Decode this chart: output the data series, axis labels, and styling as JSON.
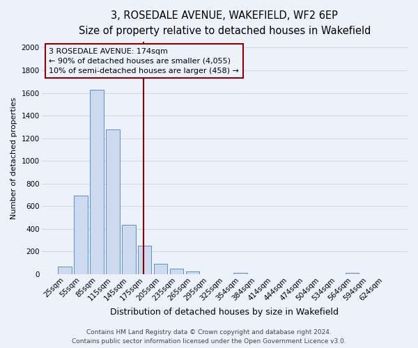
{
  "title": "3, ROSEDALE AVENUE, WAKEFIELD, WF2 6EP",
  "subtitle": "Size of property relative to detached houses in Wakefield",
  "xlabel": "Distribution of detached houses by size in Wakefield",
  "ylabel": "Number of detached properties",
  "categories": [
    "25sqm",
    "55sqm",
    "85sqm",
    "115sqm",
    "145sqm",
    "175sqm",
    "205sqm",
    "235sqm",
    "265sqm",
    "295sqm",
    "325sqm",
    "354sqm",
    "384sqm",
    "414sqm",
    "444sqm",
    "474sqm",
    "504sqm",
    "534sqm",
    "564sqm",
    "594sqm",
    "624sqm"
  ],
  "values": [
    65,
    695,
    1630,
    1275,
    435,
    255,
    90,
    50,
    25,
    0,
    0,
    15,
    0,
    0,
    0,
    0,
    0,
    0,
    15,
    0,
    0
  ],
  "bar_color": "#cdd9ee",
  "bar_edge_color": "#5a8ec8",
  "background_color": "#edf1fa",
  "grid_color": "#d0d8e8",
  "ylim": [
    0,
    2050
  ],
  "yticks": [
    0,
    200,
    400,
    600,
    800,
    1000,
    1200,
    1400,
    1600,
    1800,
    2000
  ],
  "redline_index": 4.93,
  "annotation_title": "3 ROSEDALE AVENUE: 174sqm",
  "annotation_line1": "← 90% of detached houses are smaller (4,055)",
  "annotation_line2": "10% of semi-detached houses are larger (458) →",
  "footer_line1": "Contains HM Land Registry data © Crown copyright and database right 2024.",
  "footer_line2": "Contains public sector information licensed under the Open Government Licence v3.0.",
  "title_fontsize": 10.5,
  "subtitle_fontsize": 9.5,
  "xlabel_fontsize": 9,
  "ylabel_fontsize": 8,
  "tick_fontsize": 7.5,
  "annotation_fontsize": 8,
  "footer_fontsize": 6.5
}
